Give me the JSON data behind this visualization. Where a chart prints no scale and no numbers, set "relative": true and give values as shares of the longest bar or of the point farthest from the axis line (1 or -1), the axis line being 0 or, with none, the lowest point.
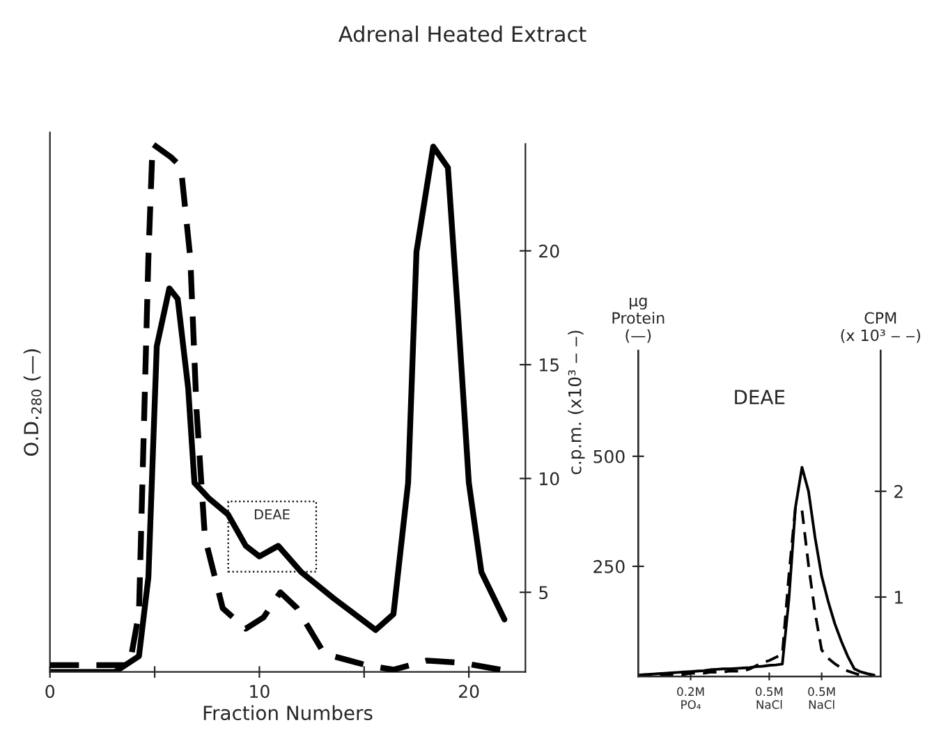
{
  "chart_data": [
    {
      "type": "line",
      "title": "Adrenal Heated Extract",
      "xlabel": "Fraction Numbers",
      "ylabel": "O.D.$_{280}$ (—)",
      "relative": true,
      "xlim": [
        0,
        22.7
      ],
      "xticks": [
        0,
        {
          "value": 5,
          "label": null
        },
        10,
        {
          "value": 15,
          "label": null
        },
        20
      ],
      "tick_labels": "x",
      "annotations": [
        "DEAE"
      ],
      "series": [
        {
          "color": "#000000",
          "line_style": "solid",
          "x": [
            0,
            3.1,
            4.25,
            4.7,
            5.1,
            5.7,
            6.1,
            6.6,
            6.9,
            7.6,
            8.5,
            9.35,
            10.0,
            10.9,
            12.0,
            13.55,
            15.55,
            16.4,
            17.1,
            17.5,
            18.3,
            19.0,
            19.5,
            20.0,
            20.6,
            21.7
          ],
          "values": [
            0,
            0,
            0.03,
            0.18,
            0.62,
            0.73,
            0.71,
            0.54,
            0.36,
            0.33,
            0.3,
            0.24,
            0.22,
            0.24,
            0.19,
            0.14,
            0.08,
            0.11,
            0.36,
            0.8,
            1.0,
            0.96,
            0.67,
            0.36,
            0.19,
            0.1
          ]
        }
      ]
    },
    {
      "type": "line",
      "ylabel": "c.p.m. (x10³ ‒ ‒)",
      "xlim": [
        0,
        22.7
      ],
      "ylim": [
        1.5,
        25.2
      ],
      "yticks": [
        5,
        10,
        15,
        20
      ],
      "tick_labels": "y",
      "series": [
        {
          "color": "#000000",
          "line_style": "dashed",
          "x": [
            0,
            3.8,
            4.25,
            4.7,
            4.9,
            5.8,
            6.25,
            6.7,
            7.0,
            7.4,
            8.25,
            9.35,
            10.2,
            11.0,
            11.8,
            13.1,
            15.1,
            16.4,
            18.0,
            19.7,
            21.5
          ],
          "values": [
            1.8,
            1.8,
            4.1,
            19.7,
            24.7,
            24.1,
            23.7,
            19.7,
            13,
            7.4,
            4.3,
            3.4,
            3.9,
            5.0,
            4.3,
            2.3,
            1.8,
            1.6,
            2.0,
            1.9,
            1.6
          ]
        }
      ]
    },
    {
      "type": "line",
      "title": "DEAE",
      "ylabel": "µg\nProtein\n(—)",
      "y2label": "CPM\n(x 10³ ‒ ‒)",
      "categories": [
        null,
        null,
        null,
        null,
        null,
        null,
        null,
        null,
        "0.2M\nPO₄",
        null,
        null,
        null,
        null,
        null,
        null,
        null,
        null,
        null,
        null,
        null,
        "0.5M\nNaCl",
        null,
        null,
        null,
        null,
        null,
        null,
        null,
        "0.5M\nNaCl",
        null,
        null,
        null,
        null,
        null,
        null,
        null,
        null
      ],
      "ylim": [
        0,
        740
      ],
      "yticks": [
        250,
        500
      ],
      "y2lim": [
        0.25,
        3.33
      ],
      "y2ticks": [
        1,
        2
      ],
      "series": [
        {
          "color": "#000000",
          "line_style": "solid",
          "values": [
            3,
            4,
            5,
            6,
            7,
            8,
            9,
            10,
            11,
            12,
            13,
            15,
            16,
            17,
            17,
            18,
            19,
            20,
            22,
            23,
            25,
            26,
            28,
            175,
            384,
            475,
            420,
            315,
            228,
            170,
            120,
            80,
            45,
            17,
            10,
            6,
            3
          ]
        },
        {
          "color": "#000000",
          "line_style": "dashed",
          "axis": "y2",
          "values": [
            0.25,
            0.25,
            0.26,
            0.26,
            0.26,
            0.27,
            0.27,
            0.27,
            0.28,
            0.28,
            0.28,
            0.29,
            0.29,
            0.29,
            0.3,
            0.3,
            0.3,
            0.32,
            0.35,
            0.38,
            0.4,
            0.43,
            0.46,
            1.21,
            1.85,
            1.82,
            1.3,
            0.85,
            0.5,
            0.42,
            0.37,
            0.33,
            0.3,
            0.28,
            0.26,
            null,
            null
          ]
        }
      ]
    }
  ]
}
